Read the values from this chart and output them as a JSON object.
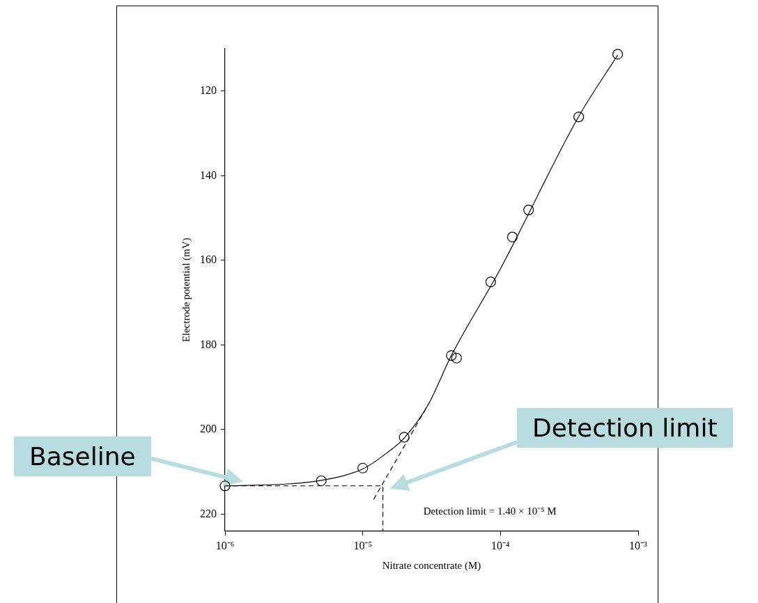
{
  "chart_data": {
    "type": "scatter",
    "xlabel": "Nitrate concentrate (M)",
    "ylabel": "Electrode potential (mV)",
    "log": "x",
    "xlim": [
      1e-06,
      0.001
    ],
    "ylim": [
      224,
      110
    ],
    "xticks": [
      {
        "value": 1e-06,
        "label": "10⁻⁶"
      },
      {
        "value": 1e-05,
        "label": "10⁻⁵"
      },
      {
        "value": 0.0001,
        "label": "10⁻⁴"
      },
      {
        "value": 0.001,
        "label": "10⁻³"
      }
    ],
    "yticks": [
      120,
      140,
      160,
      180,
      200,
      220
    ],
    "grid": false,
    "legend": false,
    "marker": "circle",
    "series": [
      {
        "color": "#000000",
        "x": [
          1e-06,
          5e-06,
          1e-05,
          2e-05,
          4.4e-05,
          4.8e-05,
          8.5e-05,
          0.000122,
          0.00016,
          0.00037,
          0.00071
        ],
        "values": [
          213.3,
          212.1,
          209.1,
          201.8,
          182.5,
          183.1,
          165.1,
          154.5,
          148.1,
          126.1,
          111.3
        ]
      },
      {
        "type": "line",
        "color": "#000000",
        "line_style": "solid",
        "marker": "none",
        "x": [
          1e-06,
          3e-06,
          5e-06,
          1e-05,
          1.5e-05,
          2e-05,
          3e-05,
          4.4e-05,
          0.0001,
          0.00037,
          0.00071
        ],
        "values": [
          213.3,
          212.8,
          212,
          209.3,
          205.5,
          202,
          194,
          182.5,
          162,
          126,
          111.5
        ]
      },
      {
        "type": "line",
        "color": "#000000",
        "line_style": "dashed",
        "marker": "none",
        "x": [
          1.2e-05,
          3e-05
        ],
        "values": [
          216.5,
          194
        ]
      },
      {
        "type": "line",
        "color": "#000000",
        "line_style": "dashed",
        "marker": "none",
        "x": [
          1e-06,
          1.4e-05,
          1.4e-05
        ],
        "values": [
          213.3,
          213.3,
          224
        ]
      }
    ],
    "annotations": [
      "Baseline",
      "Detection limit",
      "Detection limit = 1.40 × 10⁻⁵ M"
    ]
  }
}
